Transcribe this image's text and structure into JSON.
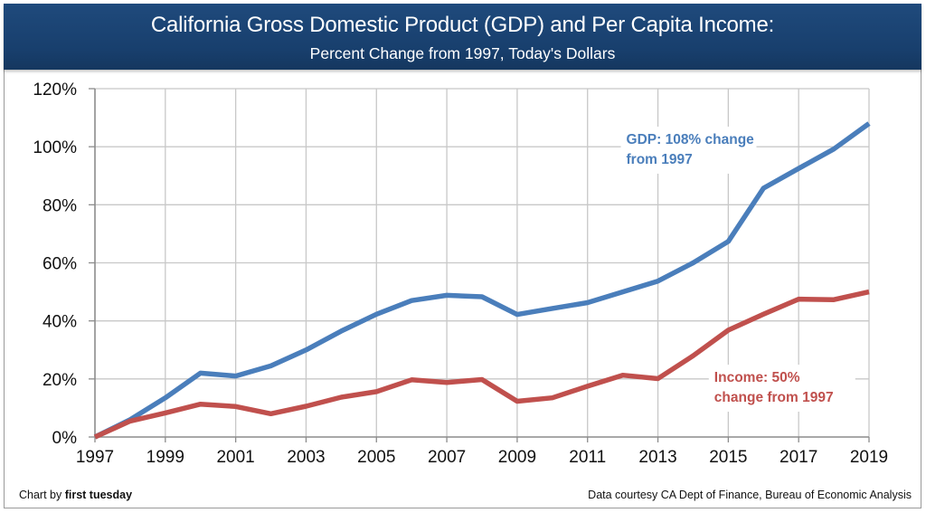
{
  "header": {
    "title": "California Gross Domestic Product (GDP) and Per Capita Income:",
    "subtitle": "Percent Change from 1997, Today's Dollars"
  },
  "footer": {
    "chart_by_prefix": "Chart by ",
    "chart_by_name": "first tuesday",
    "source": "Data courtesy CA Dept of Finance, Bureau of Economic Analysis"
  },
  "colors": {
    "gdp": "#4a7ebb",
    "income": "#c0504d",
    "grid": "#c8c8c8",
    "axis": "#8c8c8c",
    "banner": "#1b426f"
  },
  "chart_data": {
    "type": "line",
    "title": "California Gross Domestic Product (GDP) and Per Capita Income:",
    "subtitle": "Percent Change from 1997, Today's Dollars",
    "xlabel": "",
    "ylabel": "",
    "x": [
      1997,
      1998,
      1999,
      2000,
      2001,
      2002,
      2003,
      2004,
      2005,
      2006,
      2007,
      2008,
      2009,
      2010,
      2011,
      2012,
      2013,
      2014,
      2015,
      2016,
      2017,
      2018,
      2019
    ],
    "xlim": [
      1997,
      2019
    ],
    "x_ticks": [
      "1997",
      "1999",
      "2001",
      "2003",
      "2005",
      "2007",
      "2009",
      "2011",
      "2013",
      "2015",
      "2017",
      "2019"
    ],
    "ylim": [
      0,
      120
    ],
    "y_ticks": [
      "0%",
      "20%",
      "40%",
      "60%",
      "80%",
      "100%",
      "120%"
    ],
    "y_tick_values": [
      0,
      20,
      40,
      60,
      80,
      100,
      120
    ],
    "grid": true,
    "legend": "none (inline annotations)",
    "series": [
      {
        "name": "GDP",
        "color": "#4a7ebb",
        "values": [
          0,
          6,
          13.5,
          22,
          21,
          24.5,
          30,
          36.5,
          42.3,
          47,
          48.8,
          48.3,
          42.2,
          44.3,
          46.3,
          50,
          53.7,
          60,
          67.4,
          85.7,
          92.5,
          99.2,
          108
        ]
      },
      {
        "name": "Per Capita Income",
        "color": "#c0504d",
        "values": [
          0,
          5.5,
          8.3,
          11.3,
          10.5,
          8,
          10.6,
          13.7,
          15.6,
          19.7,
          18.8,
          19.8,
          12.3,
          13.5,
          17.5,
          21.3,
          20.1,
          28,
          36.8,
          42.3,
          47.5,
          47.3,
          50
        ]
      }
    ],
    "annotations": [
      {
        "series": "GDP",
        "lines": [
          "GDP: 108% change",
          "from 1997"
        ],
        "x": 2012.1,
        "y": 101
      },
      {
        "series": "Per Capita Income",
        "lines": [
          "Income: 50%",
          "change from 1997"
        ],
        "x": 2014.6,
        "y": 19
      }
    ]
  }
}
